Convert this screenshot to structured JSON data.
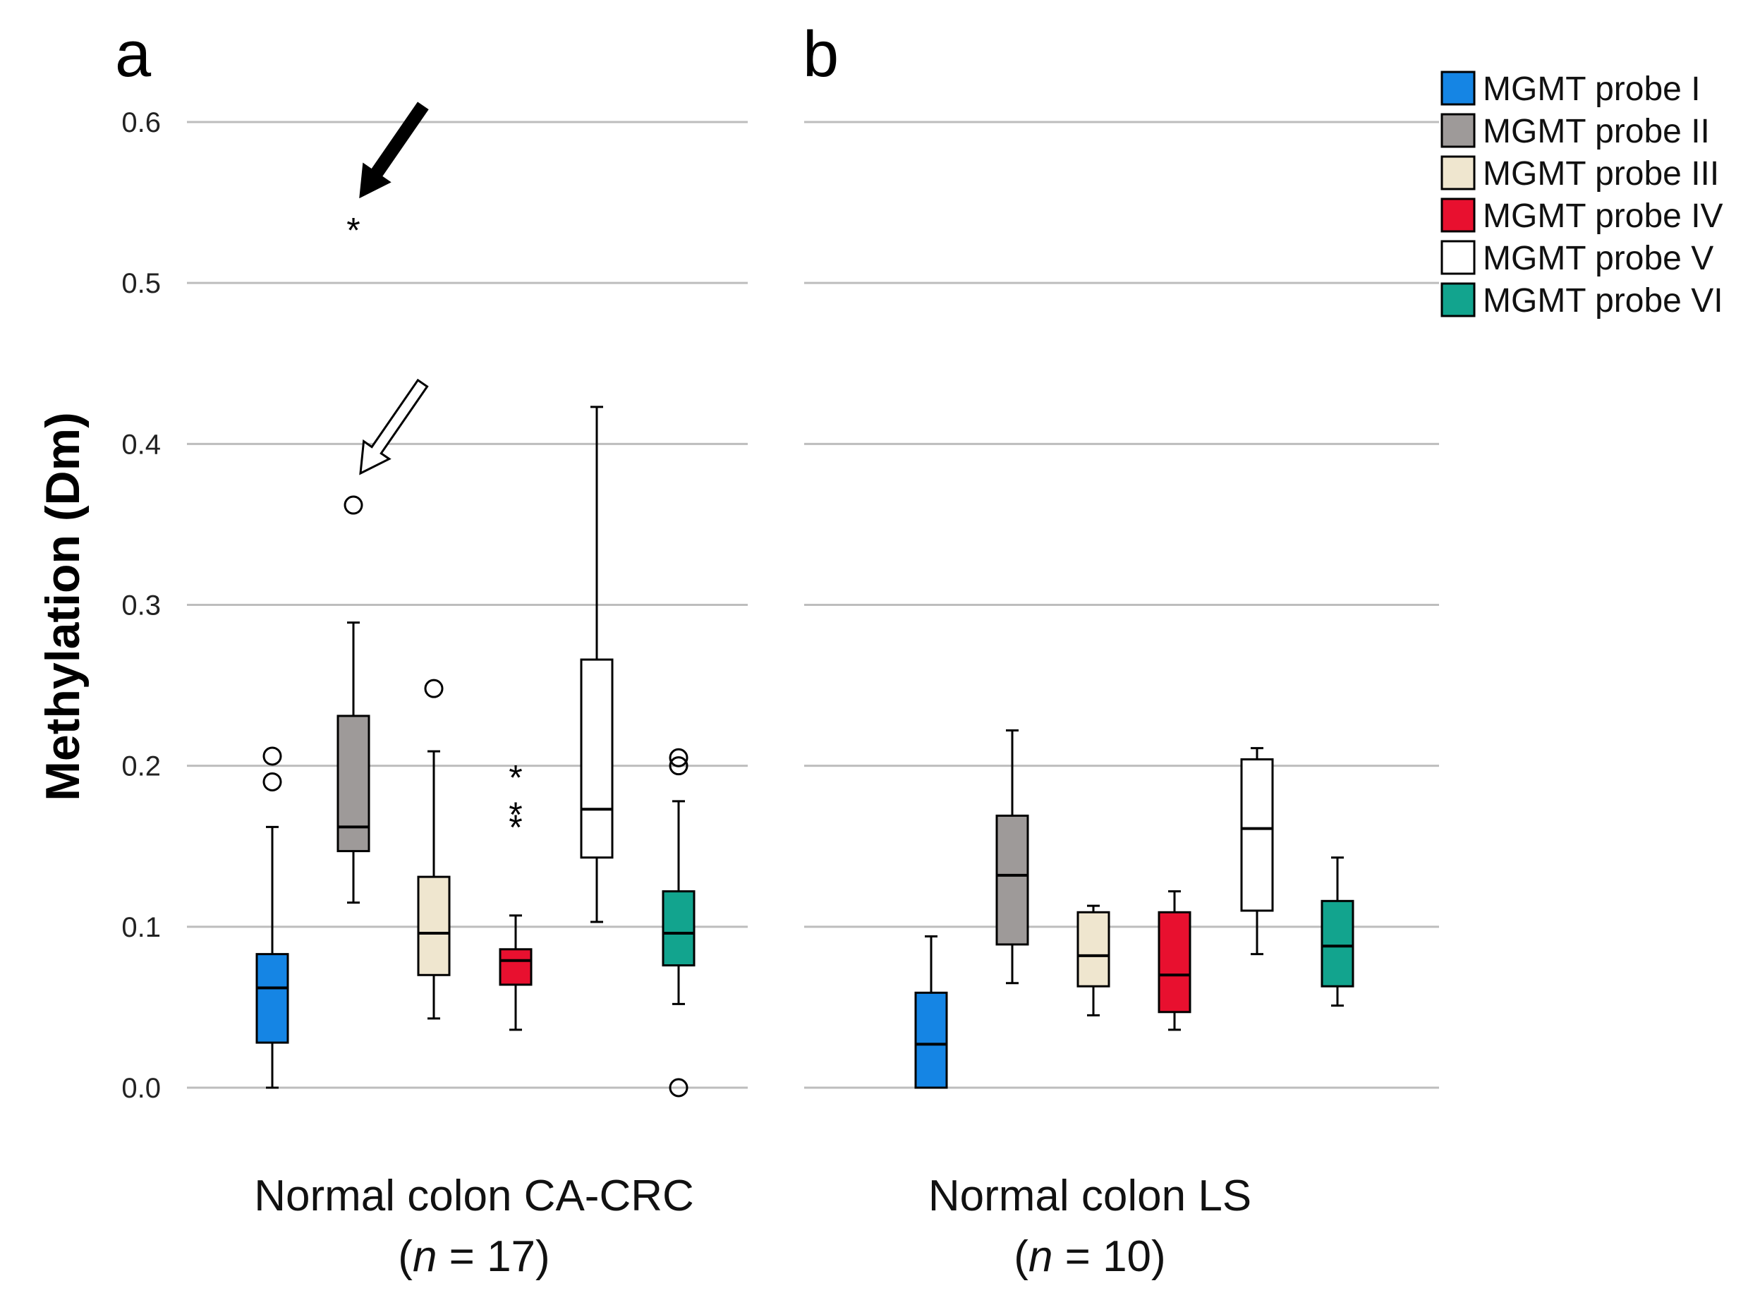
{
  "chart_data": {
    "type": "boxplot",
    "ylabel": "Methylation (Dm)",
    "ylim": [
      0,
      0.6
    ],
    "yticks": [
      "0.0",
      "0.1",
      "0.2",
      "0.3",
      "0.4",
      "0.5",
      "0.6"
    ],
    "ytick_values": [
      0,
      0.1,
      0.2,
      0.3,
      0.4,
      0.5,
      0.6
    ],
    "grid": true,
    "legend_position": "top-right",
    "series": [
      {
        "name": "MGMT probe I",
        "color": "#1585e4"
      },
      {
        "name": "MGMT probe II",
        "color": "#9e9a99"
      },
      {
        "name": "MGMT probe III",
        "color": "#efe6cf"
      },
      {
        "name": "MGMT probe IV",
        "color": "#e8102f"
      },
      {
        "name": "MGMT probe V",
        "color": "#ffffff"
      },
      {
        "name": "MGMT probe VI",
        "color": "#12a48e"
      }
    ],
    "panels": [
      {
        "panel_label": "a",
        "group_line1": "Normal colon CA-CRC",
        "group_prefix": "(",
        "group_n_symbol": "n",
        "group_n_value": " = 17)",
        "boxes": [
          {
            "series": 0,
            "min": 0.0,
            "q1": 0.028,
            "median": 0.062,
            "q3": 0.083,
            "max": 0.162,
            "outliers": [
              {
                "value": 0.206,
                "marker": "circle"
              },
              {
                "value": 0.19,
                "marker": "circle"
              }
            ]
          },
          {
            "series": 1,
            "min": 0.115,
            "q1": 0.147,
            "median": 0.162,
            "q3": 0.231,
            "max": 0.289,
            "outliers": [
              {
                "value": 0.362,
                "marker": "circle"
              },
              {
                "value": 0.534,
                "marker": "star"
              }
            ]
          },
          {
            "series": 2,
            "min": 0.043,
            "q1": 0.07,
            "median": 0.096,
            "q3": 0.131,
            "max": 0.209,
            "outliers": [
              {
                "value": 0.248,
                "marker": "circle"
              }
            ]
          },
          {
            "series": 3,
            "min": 0.036,
            "q1": 0.064,
            "median": 0.079,
            "q3": 0.086,
            "max": 0.107,
            "outliers": [
              {
                "value": 0.194,
                "marker": "star"
              },
              {
                "value": 0.171,
                "marker": "star"
              },
              {
                "value": 0.163,
                "marker": "star"
              }
            ]
          },
          {
            "series": 4,
            "min": 0.103,
            "q1": 0.143,
            "median": 0.173,
            "q3": 0.266,
            "max": 0.423,
            "outliers": []
          },
          {
            "series": 5,
            "min": 0.052,
            "q1": 0.076,
            "median": 0.096,
            "q3": 0.122,
            "max": 0.178,
            "outliers": [
              {
                "value": 0.205,
                "marker": "circle"
              },
              {
                "value": 0.2,
                "marker": "circle"
              },
              {
                "value": 0.0,
                "marker": "circle"
              }
            ]
          }
        ],
        "annotations": [
          {
            "type": "filled-arrow",
            "points_to_value": 0.534,
            "near_series": 1
          },
          {
            "type": "open-arrow",
            "points_to_value": 0.362,
            "near_series": 1
          }
        ]
      },
      {
        "panel_label": "b",
        "group_line1": "Normal colon LS",
        "group_prefix": "(",
        "group_n_symbol": "n",
        "group_n_value": " = 10)",
        "boxes": [
          {
            "series": 0,
            "min": 0.0,
            "q1": 0.0,
            "median": 0.027,
            "q3": 0.059,
            "max": 0.094,
            "outliers": []
          },
          {
            "series": 1,
            "min": 0.065,
            "q1": 0.089,
            "median": 0.132,
            "q3": 0.169,
            "max": 0.222,
            "outliers": []
          },
          {
            "series": 2,
            "min": 0.045,
            "q1": 0.063,
            "median": 0.082,
            "q3": 0.109,
            "max": 0.113,
            "outliers": []
          },
          {
            "series": 3,
            "min": 0.036,
            "q1": 0.047,
            "median": 0.07,
            "q3": 0.109,
            "max": 0.122,
            "outliers": []
          },
          {
            "series": 4,
            "min": 0.083,
            "q1": 0.11,
            "median": 0.161,
            "q3": 0.204,
            "max": 0.211,
            "outliers": []
          },
          {
            "series": 5,
            "min": 0.051,
            "q1": 0.063,
            "median": 0.088,
            "q3": 0.116,
            "max": 0.143,
            "outliers": []
          }
        ],
        "annotations": []
      }
    ]
  }
}
